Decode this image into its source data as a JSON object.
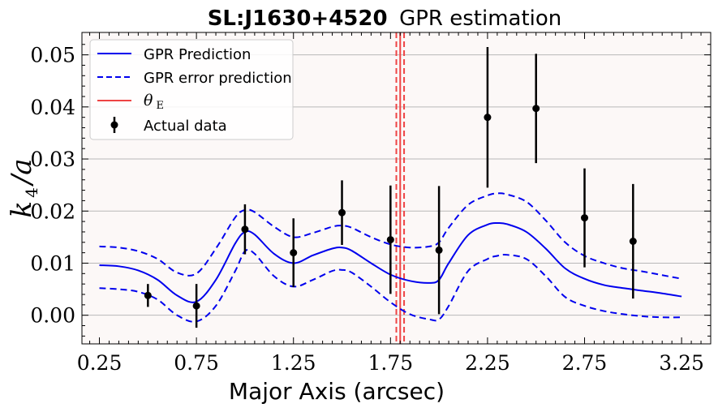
{
  "chart_data": {
    "type": "line",
    "title": {
      "bold": "SL:J1630+4520",
      "rest": "GPR estimation"
    },
    "xlabel": "Major Axis (arcsec)",
    "ylabel": {
      "main": "k",
      "sub": "4",
      "rest": "/a"
    },
    "xlim": [
      0.16,
      3.4
    ],
    "ylim": [
      -0.0055,
      0.0543
    ],
    "xticks": [
      0.25,
      0.75,
      1.25,
      1.75,
      2.25,
      2.75,
      3.25
    ],
    "xtick_labels": [
      "0.25",
      "0.75",
      "1.25",
      "1.75",
      "2.25",
      "2.75",
      "3.25"
    ],
    "yticks": [
      0.0,
      0.01,
      0.02,
      0.03,
      0.04,
      0.05
    ],
    "ytick_labels": [
      "0.00",
      "0.01",
      "0.02",
      "0.03",
      "0.04",
      "0.05"
    ],
    "grid": "horizontal",
    "legend_position": "top-left",
    "colors": {
      "prediction": "#0000ee",
      "theta": "#ee4444",
      "data": "#000000",
      "plot_bg": "#fcf8f7"
    },
    "legend": [
      {
        "label": "GPR Prediction",
        "style": "solid-line",
        "color": "#0000ee"
      },
      {
        "label": "GPR error prediction",
        "style": "dashed-line",
        "color": "#0000ee"
      },
      {
        "label": "θ",
        "sub": "E",
        "style": "solid-line",
        "color": "#ee4444"
      },
      {
        "label": "Actual data",
        "style": "errorbar",
        "color": "#000000"
      }
    ],
    "series": [
      {
        "name": "GPR Prediction",
        "x": [
          0.25,
          0.35,
          0.45,
          0.55,
          0.65,
          0.75,
          0.85,
          0.95,
          1.0,
          1.05,
          1.15,
          1.25,
          1.35,
          1.45,
          1.5,
          1.55,
          1.65,
          1.75,
          1.85,
          1.95,
          2.0,
          2.05,
          2.15,
          2.25,
          2.3,
          2.35,
          2.45,
          2.55,
          2.65,
          2.75,
          2.85,
          2.95,
          3.05,
          3.15,
          3.25
        ],
        "y": [
          0.0096,
          0.0094,
          0.0086,
          0.0068,
          0.0038,
          0.0026,
          0.0068,
          0.0138,
          0.016,
          0.0155,
          0.0118,
          0.01,
          0.0115,
          0.0128,
          0.013,
          0.0124,
          0.01,
          0.0078,
          0.0066,
          0.0062,
          0.0068,
          0.01,
          0.0154,
          0.0174,
          0.0177,
          0.0175,
          0.016,
          0.0128,
          0.009,
          0.007,
          0.0058,
          0.0052,
          0.0047,
          0.0042,
          0.0036
        ]
      },
      {
        "name": "GPR error prediction",
        "x": [
          0.25,
          0.35,
          0.45,
          0.55,
          0.65,
          0.75,
          0.85,
          0.95,
          1.0,
          1.05,
          1.15,
          1.25,
          1.35,
          1.45,
          1.5,
          1.55,
          1.65,
          1.75,
          1.85,
          1.95,
          2.0,
          2.05,
          2.15,
          2.25,
          2.3,
          2.35,
          2.45,
          2.55,
          2.65,
          2.75,
          2.85,
          2.95,
          3.05,
          3.15,
          3.25
        ],
        "y": [
          0.0132,
          0.013,
          0.0123,
          0.0108,
          0.0082,
          0.008,
          0.0128,
          0.0188,
          0.0202,
          0.0198,
          0.017,
          0.015,
          0.0158,
          0.017,
          0.0172,
          0.0168,
          0.015,
          0.0136,
          0.013,
          0.0132,
          0.014,
          0.0168,
          0.0212,
          0.023,
          0.0234,
          0.0232,
          0.0218,
          0.0182,
          0.014,
          0.0114,
          0.01,
          0.009,
          0.0084,
          0.0077,
          0.007
        ]
      },
      {
        "name": "GPR error prediction",
        "x": [
          0.25,
          0.35,
          0.45,
          0.55,
          0.65,
          0.75,
          0.85,
          0.95,
          1.0,
          1.05,
          1.15,
          1.25,
          1.35,
          1.45,
          1.5,
          1.55,
          1.65,
          1.75,
          1.85,
          1.95,
          2.0,
          2.05,
          2.15,
          2.25,
          2.3,
          2.35,
          2.45,
          2.55,
          2.65,
          2.75,
          2.85,
          2.95,
          3.05,
          3.15,
          3.25
        ],
        "y": [
          0.0052,
          0.005,
          0.0045,
          0.003,
          0.0,
          -0.0012,
          0.0018,
          0.0085,
          0.0123,
          0.0118,
          0.0075,
          0.0055,
          0.0068,
          0.0085,
          0.0087,
          0.0082,
          0.0055,
          0.0025,
          0.0002,
          -0.0008,
          -0.0008,
          0.0018,
          0.0085,
          0.0108,
          0.0114,
          0.0116,
          0.0108,
          0.0075,
          0.0035,
          0.0018,
          0.0008,
          0.0002,
          -0.0002,
          -0.0004,
          -0.0004
        ]
      },
      {
        "name": "Actual data",
        "x": [
          0.5,
          0.75,
          1.0,
          1.25,
          1.5,
          1.75,
          2.0,
          2.25,
          2.5,
          2.75,
          3.0
        ],
        "y": [
          0.0038,
          0.0018,
          0.0165,
          0.012,
          0.0197,
          0.0145,
          0.0125,
          0.038,
          0.0397,
          0.0187,
          0.0142
        ],
        "err": [
          0.0022,
          0.0042,
          0.0048,
          0.0066,
          0.0062,
          0.0104,
          0.0123,
          0.0135,
          0.0105,
          0.0095,
          0.011
        ]
      }
    ],
    "theta_E": {
      "value": 1.8,
      "band": [
        1.78,
        1.82
      ]
    }
  }
}
